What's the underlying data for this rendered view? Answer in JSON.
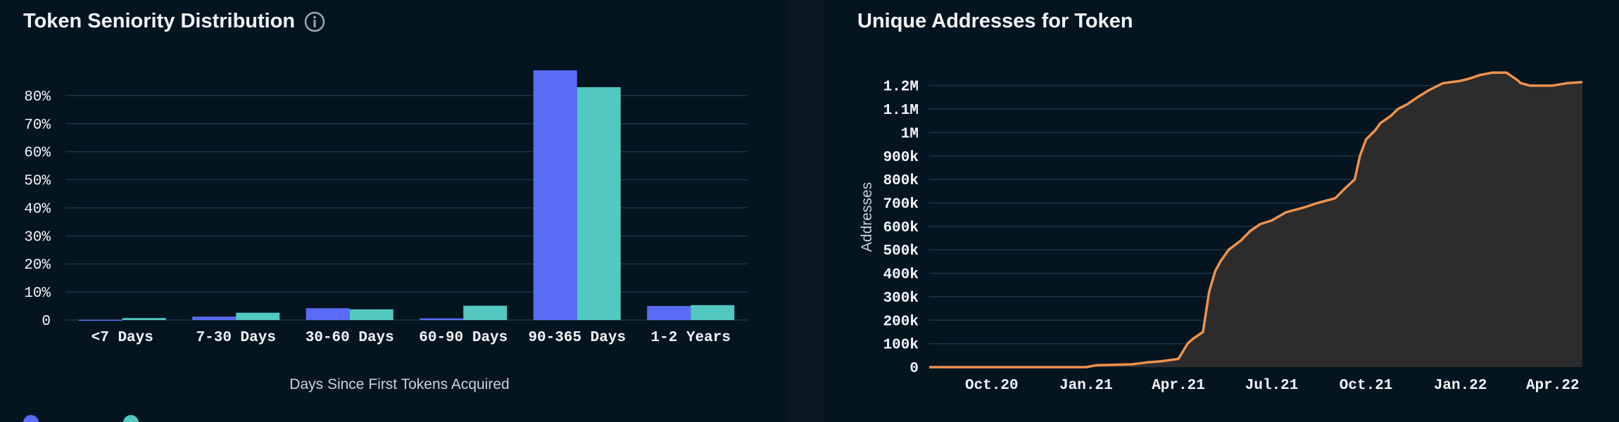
{
  "left_panel": {
    "title": "Token Seniority Distribution",
    "info_icon": "info-icon",
    "legend_icon": "refresh-icon"
  },
  "right_panel": {
    "title": "Unique Addresses for Token"
  },
  "colors": {
    "tokens": "#5a6cf5",
    "addresses": "#52c8c0",
    "line": "#f0924c",
    "area": "#2e2d2d",
    "grid": "#1a3448",
    "background": "#041520"
  },
  "chart_data": [
    {
      "type": "bar",
      "title": "Token Seniority Distribution",
      "xlabel": "Days Since First Tokens Acquired",
      "ylabel": "",
      "categories": [
        "<7 Days",
        "7-30 Days",
        "30-60 Days",
        "60-90 Days",
        "90-365 Days",
        "1-2 Years"
      ],
      "series": [
        {
          "name": "",
          "values": [
            0.1,
            1.2,
            4.2,
            0.6,
            89,
            5
          ]
        },
        {
          "name": "",
          "values": [
            0.7,
            2.6,
            3.8,
            5.1,
            83,
            5.3
          ]
        }
      ],
      "ylim": [
        0,
        90
      ],
      "yticks": [
        0,
        10,
        20,
        30,
        40,
        50,
        60,
        70,
        80
      ],
      "ytick_labels": [
        "0",
        "10%",
        "20%",
        "30%",
        "40%",
        "50%",
        "60%",
        "70%",
        "80%"
      ],
      "grid": true
    },
    {
      "type": "area",
      "title": "Unique Addresses for Token",
      "xlabel": "",
      "ylabel": "Addresses",
      "x_tick_labels": [
        "Oct.20",
        "Jan.21",
        "Apr.21",
        "Jul.21",
        "Oct.21",
        "Jan.22",
        "Apr.22"
      ],
      "x_ticks": [
        "2020-10-01",
        "2021-01-01",
        "2021-04-01",
        "2021-07-01",
        "2021-10-01",
        "2022-01-01",
        "2022-04-01"
      ],
      "yticks": [
        0,
        100000,
        200000,
        300000,
        400000,
        500000,
        600000,
        700000,
        800000,
        900000,
        1000000,
        1100000,
        1200000
      ],
      "ytick_labels": [
        "0",
        "100k",
        "200k",
        "300k",
        "400k",
        "500k",
        "600k",
        "700k",
        "800k",
        "900k",
        "1M",
        "1.1M",
        "1.2M"
      ],
      "ylim": [
        0,
        1250000
      ],
      "grid": true,
      "series": [
        {
          "name": "",
          "x": [
            "2020-08-01",
            "2020-11-01",
            "2021-01-01",
            "2021-01-11",
            "2021-02-15",
            "2021-03-01",
            "2021-03-15",
            "2021-04-01",
            "2021-04-10",
            "2021-04-15",
            "2021-04-25",
            "2021-05-01",
            "2021-05-05",
            "2021-05-07",
            "2021-05-12",
            "2021-05-20",
            "2021-06-01",
            "2021-06-10",
            "2021-06-20",
            "2021-07-01",
            "2021-07-15",
            "2021-08-01",
            "2021-08-15",
            "2021-09-01",
            "2021-09-10",
            "2021-09-20",
            "2021-09-25",
            "2021-10-01",
            "2021-10-10",
            "2021-10-15",
            "2021-10-25",
            "2021-11-01",
            "2021-11-10",
            "2021-11-20",
            "2021-12-01",
            "2021-12-15",
            "2022-01-01",
            "2022-01-10",
            "2022-01-20",
            "2022-02-01",
            "2022-02-15",
            "2022-02-25",
            "2022-03-01",
            "2022-03-10",
            "2022-03-20",
            "2022-04-01",
            "2022-04-15",
            "2022-04-30"
          ],
          "y": [
            0,
            0,
            0,
            8000,
            12000,
            20000,
            25000,
            35000,
            100000,
            120000,
            150000,
            320000,
            380000,
            410000,
            450000,
            500000,
            540000,
            580000,
            610000,
            625000,
            660000,
            680000,
            700000,
            720000,
            760000,
            800000,
            900000,
            970000,
            1010000,
            1040000,
            1070000,
            1100000,
            1120000,
            1150000,
            1180000,
            1210000,
            1220000,
            1230000,
            1245000,
            1255000,
            1255000,
            1225000,
            1210000,
            1200000,
            1200000,
            1200000,
            1210000,
            1215000
          ]
        }
      ]
    }
  ]
}
